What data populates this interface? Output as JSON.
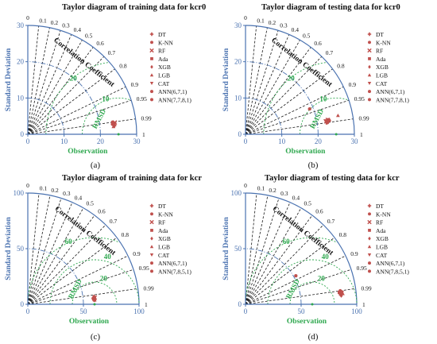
{
  "colors": {
    "axis": "#4a72b0",
    "dash": "#1a1a1a",
    "rms": "#2fa84f",
    "marker": "#c0504d",
    "title": "#111111"
  },
  "chart_data": [
    {
      "type": "taylor",
      "panel_label": "(a)",
      "title": "Taylor diagram of training data for kcr0",
      "ylabel": "Standard Deviation",
      "xlabel": "Observation",
      "radial_label": "RMSD",
      "corr_label": "Correlation Coefficient",
      "max_std": 30,
      "std_ticks": [
        "0",
        "10",
        "20",
        "30"
      ],
      "rms_ticks": [
        "10",
        "20"
      ],
      "corr_ticks": [
        "0",
        "0.1",
        "0.2",
        "0.3",
        "0.4",
        "0.5",
        "0.6",
        "0.7",
        "0.8",
        "0.9",
        "0.95",
        "0.99",
        "1"
      ],
      "legend": [
        "DT",
        "K-NN",
        "RF",
        "Ada",
        "XGB",
        "LGB",
        "CAT",
        "ANN(6,7,1)",
        "ANN(7,7,8,1)"
      ],
      "points": [
        {
          "std": 24,
          "corr": 0.995
        },
        {
          "std": 23.5,
          "corr": 0.993
        },
        {
          "std": 24.2,
          "corr": 0.991
        },
        {
          "std": 24.0,
          "corr": 0.992
        },
        {
          "std": 23.8,
          "corr": 0.994
        },
        {
          "std": 23.7,
          "corr": 0.996
        },
        {
          "std": 24.1,
          "corr": 0.993
        },
        {
          "std": 23.6,
          "corr": 0.99
        },
        {
          "std": 23.9,
          "corr": 0.995
        }
      ]
    },
    {
      "type": "taylor",
      "panel_label": "(b)",
      "title": "Taylor diagram of testing data for kcr0",
      "ylabel": "Standard Deviation",
      "xlabel": "Observation",
      "radial_label": "RMSD",
      "corr_label": "Correlation Coefficient",
      "max_std": 30,
      "std_ticks": [
        "0",
        "10",
        "20",
        "30"
      ],
      "rms_ticks": [
        "10",
        "20"
      ],
      "corr_ticks": [
        "0",
        "0.1",
        "0.2",
        "0.3",
        "0.4",
        "0.5",
        "0.6",
        "0.7",
        "0.8",
        "0.9",
        "0.95",
        "0.99",
        "1"
      ],
      "legend": [
        "DT",
        "K-NN",
        "RF",
        "Ada",
        "XGB",
        "LGB",
        "CAT",
        "ANN(6,7,1)",
        "ANN(7,7,8,1)"
      ],
      "points": [
        {
          "std": 22.5,
          "corr": 0.99
        },
        {
          "std": 19,
          "corr": 0.93
        },
        {
          "std": 23,
          "corr": 0.985
        },
        {
          "std": 23.2,
          "corr": 0.985
        },
        {
          "std": 22.5,
          "corr": 0.988
        },
        {
          "std": 26,
          "corr": 0.98
        },
        {
          "std": 22.3,
          "corr": 0.986
        },
        {
          "std": 22.8,
          "corr": 0.99
        },
        {
          "std": 23.4,
          "corr": 0.987
        }
      ]
    },
    {
      "type": "taylor",
      "panel_label": "(c)",
      "title": "Taylor diagram of training data for kcr",
      "ylabel": "Standard Deviation",
      "xlabel": "Observation",
      "radial_label": "RMSD",
      "corr_label": "Correlation Coefficient",
      "max_std": 100,
      "std_ticks": [
        "0",
        "50",
        "100"
      ],
      "rms_ticks": [
        "20",
        "40",
        "60"
      ],
      "corr_ticks": [
        "0",
        "0.1",
        "0.2",
        "0.3",
        "0.4",
        "0.5",
        "0.6",
        "0.7",
        "0.8",
        "0.9",
        "0.95",
        "0.99",
        "1"
      ],
      "legend": [
        "DT",
        "K-NN",
        "RF",
        "Ada",
        "XGB",
        "LGB",
        "CAT",
        "ANN(6,7,1)",
        "ANN(7,8,5,1)"
      ],
      "points": [
        {
          "std": 60,
          "corr": 0.998
        },
        {
          "std": 59,
          "corr": 0.996
        },
        {
          "std": 60.5,
          "corr": 0.995
        },
        {
          "std": 59.5,
          "corr": 0.997
        },
        {
          "std": 60,
          "corr": 0.993
        },
        {
          "std": 60.2,
          "corr": 0.998
        },
        {
          "std": 59.8,
          "corr": 0.997
        },
        {
          "std": 60.3,
          "corr": 0.996
        },
        {
          "std": 59.6,
          "corr": 0.995
        }
      ]
    },
    {
      "type": "taylor",
      "panel_label": "(d)",
      "title": "Taylor diagram of testing data for kcr",
      "ylabel": "Standard Deviation",
      "xlabel": "Observation",
      "radial_label": "RMSD",
      "corr_label": "Correlation Coefficient",
      "max_std": 100,
      "std_ticks": [
        "0",
        "50",
        "100"
      ],
      "rms_ticks": [
        "20",
        "40",
        "60"
      ],
      "corr_ticks": [
        "0",
        "0.1",
        "0.2",
        "0.3",
        "0.4",
        "0.5",
        "0.6",
        "0.7",
        "0.8",
        "0.9",
        "0.95",
        "0.99",
        "1"
      ],
      "legend": [
        "DT",
        "K-NN",
        "RF",
        "Ada",
        "XGB",
        "LGB",
        "CAT",
        "ANN(6,7,1)",
        "ANN(7,8,5,1)"
      ],
      "points": [
        {
          "std": 86,
          "corr": 0.995
        },
        {
          "std": 52,
          "corr": 0.87
        },
        {
          "std": 87,
          "corr": 0.993
        },
        {
          "std": 85,
          "corr": 0.992
        },
        {
          "std": 86.5,
          "corr": 0.996
        },
        {
          "std": 88,
          "corr": 0.994
        },
        {
          "std": 85.5,
          "corr": 0.995
        },
        {
          "std": 86,
          "corr": 0.99
        },
        {
          "std": 87.2,
          "corr": 0.992
        }
      ]
    }
  ]
}
